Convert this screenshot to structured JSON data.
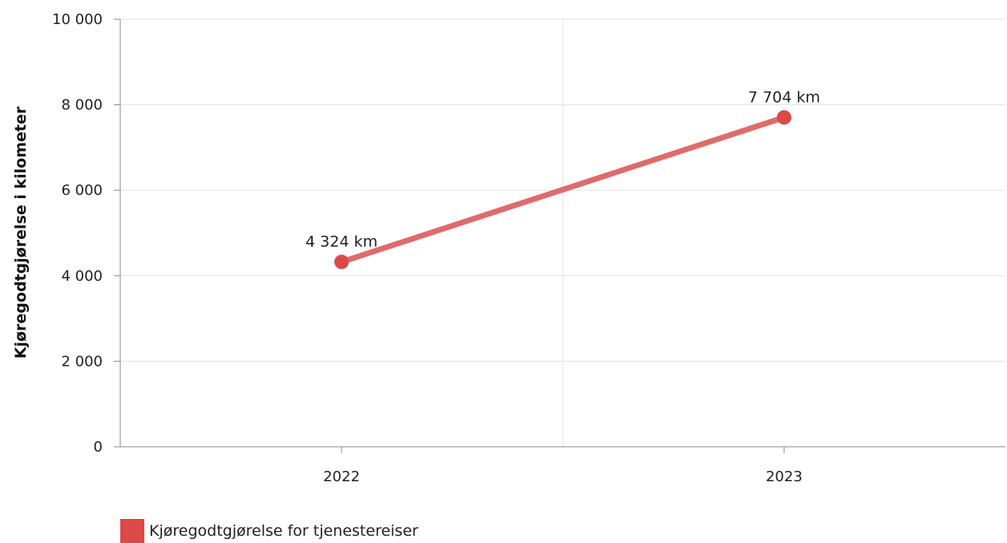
{
  "chart_data": {
    "type": "line",
    "categories": [
      "2022",
      "2023"
    ],
    "series": [
      {
        "name": "Kjøregodtgjørelse for tjenestereiser",
        "values": [
          4324,
          7704
        ],
        "data_labels": [
          "4 324 km",
          "7 704 km"
        ],
        "color": "#dd4848",
        "line_color": "#e06b6b"
      }
    ],
    "ylabel": "Kjøregodtgjørelse i kilometer",
    "ylim": [
      0,
      10000
    ],
    "yticks": [
      0,
      2000,
      4000,
      6000,
      8000,
      10000
    ],
    "ytick_labels": [
      "0",
      "2 000",
      "4 000",
      "6 000",
      "8 000",
      "10 000"
    ],
    "grid": true,
    "legend_position": "bottom-left"
  }
}
